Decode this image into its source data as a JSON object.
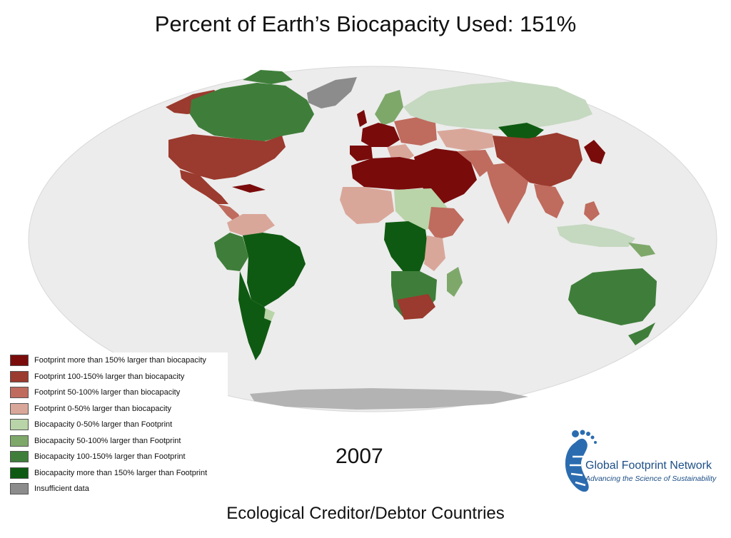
{
  "title": "Percent of Earth’s Biocapacity Used: 151%",
  "year": "2007",
  "subtitle": "Ecological Creditor/Debtor Countries",
  "brand": {
    "name": "Global Footprint Network",
    "tagline": "Advancing the Science of Sustainability"
  },
  "colors": {
    "ocean": "#ececec",
    "deficit_150_plus": "#7a0b0b",
    "deficit_100_150": "#9b3a2e",
    "deficit_50_100": "#bf6b5e",
    "deficit_0_50": "#d9a79a",
    "reserve_0_50": "#b9d4a8",
    "reserve_50_100": "#7ea86a",
    "reserve_100_150": "#3f7e3a",
    "reserve_150_plus": "#0f5a12",
    "insufficient": "#8c8c8c"
  },
  "legend": [
    {
      "label": "Footprint more than 150% larger than biocapacity",
      "color": "#7a0b0b"
    },
    {
      "label": "Footprint 100-150% larger than biocapacity",
      "color": "#9b3a2e"
    },
    {
      "label": "Footprint 50-100% larger than biocapacity",
      "color": "#bf6b5e"
    },
    {
      "label": "Footprint 0-50% larger than biocapacity",
      "color": "#d9a79a"
    },
    {
      "label": "Biocapacity 0-50% larger than Footprint",
      "color": "#b9d4a8"
    },
    {
      "label": "Biocapacity 50-100% larger than Footprint",
      "color": "#7ea86a"
    },
    {
      "label": "Biocapacity 100-150% larger than Footprint",
      "color": "#3f7e3a"
    },
    {
      "label": "Biocapacity more than 150% larger than Footprint",
      "color": "#0f5a12"
    },
    {
      "label": "Insufficient data",
      "color": "#8c8c8c"
    }
  ]
}
